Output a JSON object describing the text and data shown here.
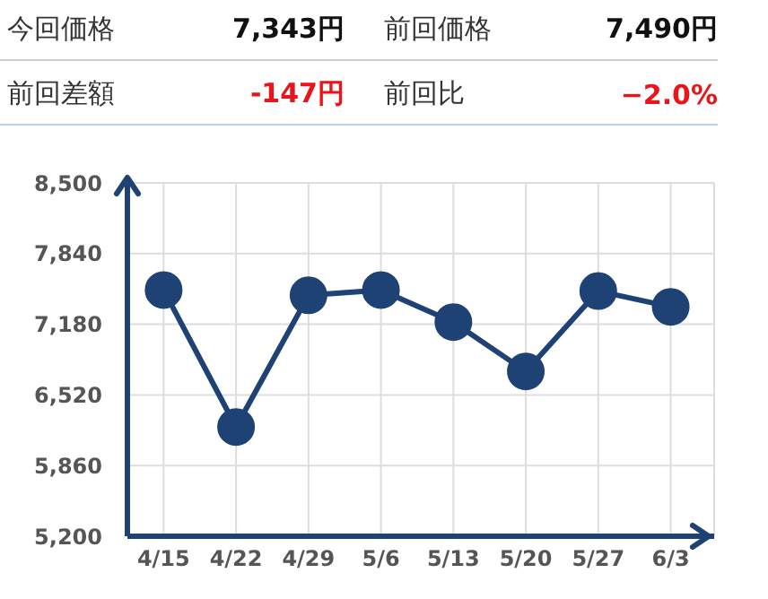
{
  "chart_data": {
    "type": "line",
    "categories": [
      "4/15",
      "4/22",
      "4/29",
      "5/6",
      "5/13",
      "5/20",
      "5/27",
      "6/3"
    ],
    "series": [
      {
        "color": "#1f4275",
        "values": [
          7500,
          6220,
          7450,
          7500,
          7200,
          6740,
          7490,
          7343
        ]
      }
    ],
    "ylim": [
      5200,
      8500
    ],
    "yticks": [
      {
        "value": 5200,
        "label": "5,200"
      },
      {
        "value": 5860,
        "label": "5,860"
      },
      {
        "value": 6520,
        "label": "6,520"
      },
      {
        "value": 7180,
        "label": "7,180"
      },
      {
        "value": 7840,
        "label": "7,840"
      },
      {
        "value": 8500,
        "label": "8,500"
      }
    ],
    "grid": true,
    "marker": "circle",
    "line_style": "solid",
    "annotations": [
      "今回価格",
      "7,343円",
      "前回価格",
      "7,490円",
      "前回差額",
      "-147円",
      "前回比",
      "−2.0%"
    ]
  }
}
